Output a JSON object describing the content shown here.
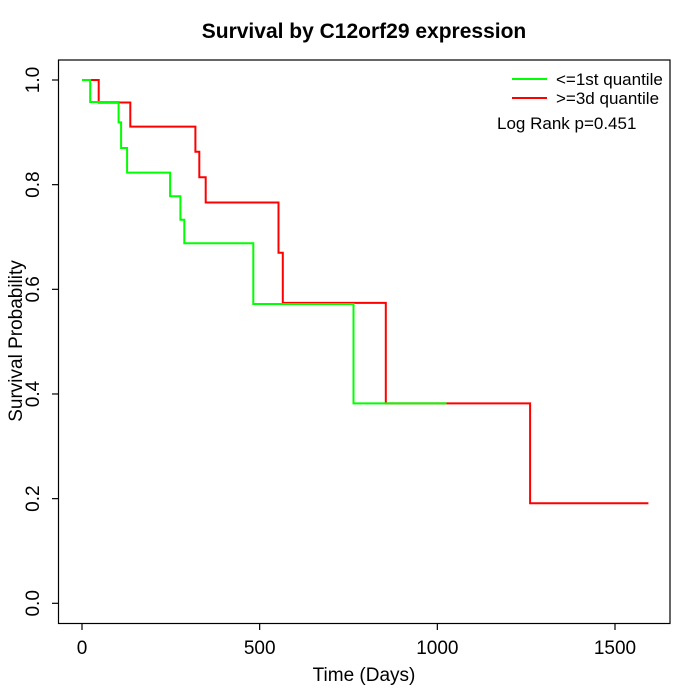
{
  "chart_data": {
    "type": "line",
    "subtype": "kaplan_meier_step",
    "title": "Survival by C12orf29 expression",
    "xlabel": "Time (Days)",
    "ylabel": "Survival Probability",
    "xlim": [
      0,
      1594
    ],
    "ylim": [
      0.0,
      1.0
    ],
    "grid": false,
    "xticks": {
      "values": [
        0,
        500,
        1000,
        1500
      ],
      "labels": [
        "0",
        "500",
        "1000",
        "1500"
      ]
    },
    "yticks": {
      "values": [
        0.0,
        0.2,
        0.4,
        0.6,
        0.8,
        1.0
      ],
      "labels": [
        "0.0",
        "0.2",
        "0.4",
        "0.6",
        "0.8",
        "1.0"
      ]
    },
    "series": [
      {
        "name": ">=3d quantile",
        "color": "#FF0000",
        "points": [
          [
            0,
            1.0
          ],
          [
            47,
            0.957
          ],
          [
            136,
            0.911
          ],
          [
            319,
            0.863
          ],
          [
            330,
            0.814
          ],
          [
            348,
            0.766
          ],
          [
            553,
            0.67
          ],
          [
            565,
            0.574
          ],
          [
            855,
            0.382
          ],
          [
            1261,
            0.191
          ]
        ],
        "end_time": 1594
      },
      {
        "name": "<=1st quantile",
        "color": "#00FF00",
        "points": [
          [
            0,
            1.0
          ],
          [
            23,
            0.958
          ],
          [
            103,
            0.919
          ],
          [
            110,
            0.87
          ],
          [
            127,
            0.823
          ],
          [
            248,
            0.778
          ],
          [
            277,
            0.733
          ],
          [
            288,
            0.688
          ],
          [
            482,
            0.572
          ],
          [
            764,
            0.382
          ]
        ],
        "end_time": 1026
      }
    ],
    "legend": {
      "position": "top-right",
      "items": [
        {
          "label": "<=1st quantile",
          "color": "#00FF00"
        },
        {
          "label": ">=3d quantile",
          "color": "#FF0000"
        }
      ],
      "annotation": "Log Rank p=0.451"
    }
  }
}
